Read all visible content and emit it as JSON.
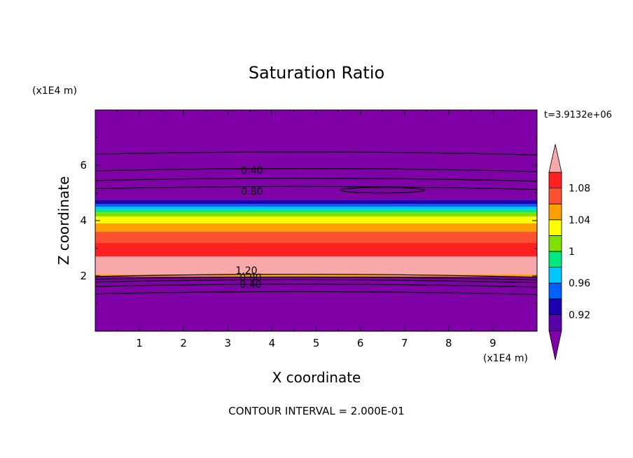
{
  "chart_data": {
    "type": "heatmap",
    "title": "Saturation Ratio",
    "xlabel": "X coordinate",
    "ylabel": "Z coordinate",
    "x_units": "(x1E4 m)",
    "y_units": "(x1E4 m)",
    "time_label": "t=3.9132e+06",
    "footer": "CONTOUR INTERVAL = 2.000E-01",
    "xlim": [
      0,
      10
    ],
    "ylim": [
      0,
      8
    ],
    "x_ticks": [
      "1",
      "2",
      "3",
      "4",
      "5",
      "6",
      "7",
      "8",
      "9"
    ],
    "y_ticks": [
      "2",
      "4",
      "6"
    ],
    "contour_labels": [
      "0.40",
      "0.80",
      "1.20",
      "0.80",
      "0.40"
    ],
    "colorbar": {
      "labels": [
        "1.08",
        "1.04",
        "1",
        "0.96",
        "0.92"
      ],
      "label_values": [
        1.08,
        1.04,
        1.0,
        0.96,
        0.92
      ],
      "levels": [
        0.9,
        0.92,
        0.94,
        0.96,
        0.98,
        1.0,
        1.02,
        1.04,
        1.06,
        1.08,
        1.1
      ],
      "colors": [
        "#8000a8",
        "#5a00a8",
        "#1a00b0",
        "#0060ff",
        "#00c8ff",
        "#00e880",
        "#80e000",
        "#ffff00",
        "#ffa000",
        "#ff5030",
        "#ff2020",
        "#f8a8a8"
      ]
    },
    "bands": [
      {
        "z": [
          0.0,
          1.98
        ],
        "color": "#8000a8"
      },
      {
        "z": [
          1.98,
          2.05
        ],
        "color": "#ffa000"
      },
      {
        "z": [
          2.05,
          2.7
        ],
        "color": "#f8a8a8"
      },
      {
        "z": [
          2.7,
          3.2
        ],
        "color": "#ff2020"
      },
      {
        "z": [
          3.2,
          3.6
        ],
        "color": "#ff5030"
      },
      {
        "z": [
          3.6,
          3.9
        ],
        "color": "#ffa000"
      },
      {
        "z": [
          3.9,
          4.15
        ],
        "color": "#ffff00"
      },
      {
        "z": [
          4.15,
          4.3
        ],
        "color": "#80e000"
      },
      {
        "z": [
          4.3,
          4.4
        ],
        "color": "#00e880"
      },
      {
        "z": [
          4.4,
          4.5
        ],
        "color": "#00c8ff"
      },
      {
        "z": [
          4.5,
          4.6
        ],
        "color": "#0060ff"
      },
      {
        "z": [
          4.6,
          4.75
        ],
        "color": "#1a00b0"
      },
      {
        "z": [
          4.75,
          8.0
        ],
        "color": "#8000a8"
      }
    ],
    "contours_z": [
      1.35,
      1.62,
      1.78,
      1.88,
      1.98,
      5.15,
      5.45,
      5.8,
      6.4
    ]
  }
}
